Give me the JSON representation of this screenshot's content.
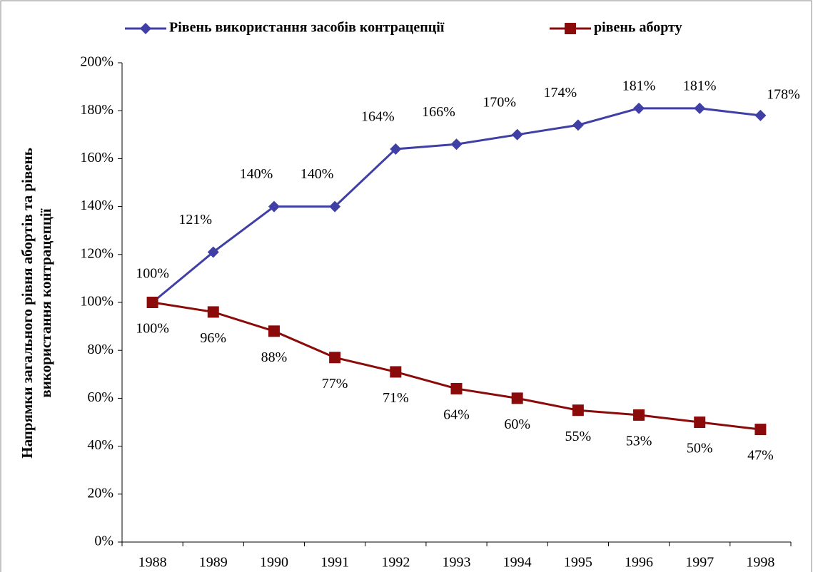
{
  "chart_data": {
    "type": "line",
    "ylabel": [
      "Напрямки загального рівня абортів та рівень",
      "використання контрацепції"
    ],
    "categories": [
      "1988",
      "1989",
      "1990",
      "1991",
      "1992",
      "1993",
      "1994",
      "1995",
      "1996",
      "1997",
      "1998"
    ],
    "series": [
      {
        "name": "Рівень використання засобів контрацепції",
        "color": "#3f3fa6",
        "marker": "diamond",
        "values": [
          100,
          121,
          140,
          140,
          164,
          166,
          170,
          174,
          181,
          181,
          178
        ],
        "value_labels": [
          "100%",
          "121%",
          "140%",
          "140%",
          "164%",
          "166%",
          "170%",
          "174%",
          "181%",
          "181%",
          "178%"
        ]
      },
      {
        "name": "рівень аборту",
        "color": "#8b0a0a",
        "marker": "square",
        "values": [
          100,
          96,
          88,
          77,
          71,
          64,
          60,
          55,
          53,
          50,
          47
        ],
        "value_labels": [
          "100%",
          "96%",
          "88%",
          "77%",
          "71%",
          "64%",
          "60%",
          "55%",
          "53%",
          "50%",
          "47%"
        ]
      }
    ],
    "ylim": [
      0,
      200
    ],
    "yticks": [
      {
        "value": 0,
        "label": "0%"
      },
      {
        "value": 20,
        "label": "20%"
      },
      {
        "value": 40,
        "label": "40%"
      },
      {
        "value": 60,
        "label": "60%"
      },
      {
        "value": 80,
        "label": "80%"
      },
      {
        "value": 100,
        "label": "100%"
      },
      {
        "value": 120,
        "label": "120%"
      },
      {
        "value": 140,
        "label": "140%"
      },
      {
        "value": 160,
        "label": "160%"
      },
      {
        "value": 180,
        "label": "180%"
      },
      {
        "value": 200,
        "label": "200%"
      }
    ],
    "grid": false,
    "legend": "top"
  }
}
